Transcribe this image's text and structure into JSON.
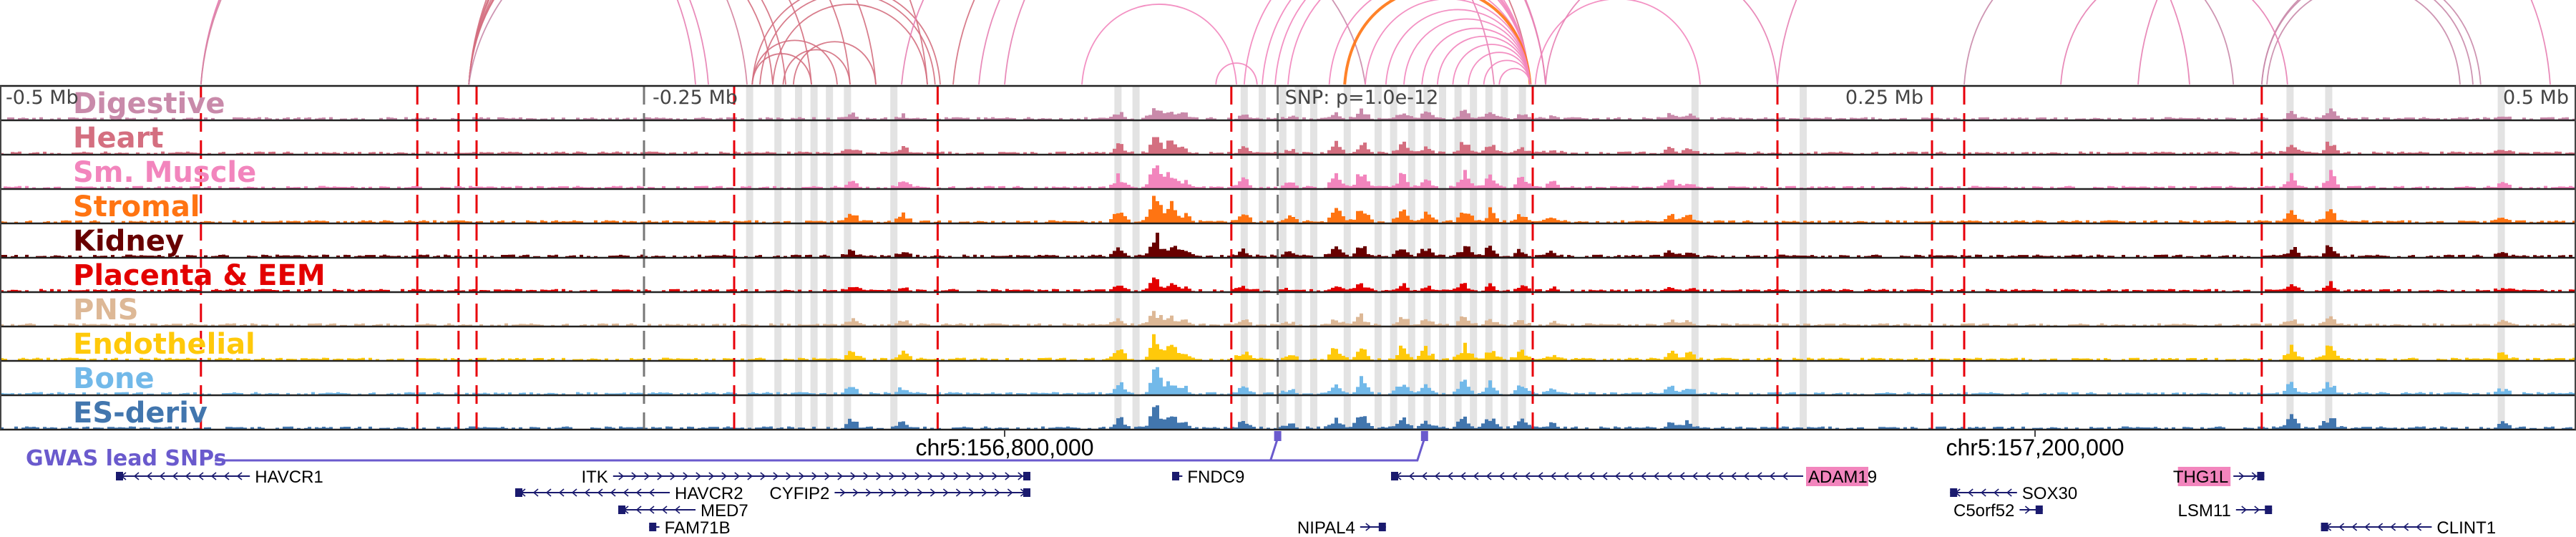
{
  "figure": {
    "axis": {
      "range_mb": [
        -0.5,
        0.5
      ],
      "ticks": [
        {
          "offset_mb": -0.5,
          "label": "-0.5 Mb"
        },
        {
          "offset_mb": -0.25,
          "label": "-0.25 Mb"
        },
        {
          "offset_mb": 0.0,
          "label": "SNP: p=1.0e-12"
        },
        {
          "offset_mb": 0.25,
          "label": "0.25 Mb"
        },
        {
          "offset_mb": 0.5,
          "label": "0.5 Mb"
        }
      ]
    },
    "tracks": [
      {
        "label": "Digestive",
        "color": "#c98aaa"
      },
      {
        "label": "Heart",
        "color": "#d46f80"
      },
      {
        "label": "Sm. Muscle",
        "color": "#f285bd"
      },
      {
        "label": "Stromal",
        "color": "#ff7412"
      },
      {
        "label": "Kidney",
        "color": "#680000"
      },
      {
        "label": "Placenta & EEM",
        "color": "#e30000"
      },
      {
        "label": "PNS",
        "color": "#ddb896"
      },
      {
        "label": "Endothelial",
        "color": "#ffc90a"
      },
      {
        "label": "Bone",
        "color": "#72b9e9"
      },
      {
        "label": "ES-deriv",
        "color": "#4276ae"
      }
    ],
    "red_dashed_offsets_mb": [
      -0.422,
      -0.338,
      -0.322,
      -0.315,
      -0.215,
      -0.136,
      -0.022,
      0.095,
      0.19,
      0.25,
      0.2625,
      0.378
    ],
    "grey_dashed_offsets_mb": [
      -0.25,
      -0.004
    ],
    "highlight_offsets_mb": [
      -0.209,
      -0.198,
      -0.19,
      -0.184,
      -0.178,
      -0.171,
      -0.153,
      -0.066,
      -0.059,
      -0.017,
      -0.01,
      -0.002,
      0.004,
      0.01,
      0.023,
      0.035,
      0.041,
      0.048,
      0.054,
      0.06,
      0.066,
      0.072,
      0.078,
      0.084,
      0.091,
      0.158,
      0.2,
      0.389,
      0.404,
      0.471
    ],
    "peaks": [
      {
        "offset_mb": -0.17,
        "height": 0.35
      },
      {
        "offset_mb": -0.15,
        "height": 0.25
      },
      {
        "offset_mb": -0.066,
        "height": 0.45
      },
      {
        "offset_mb": -0.052,
        "height": 0.95
      },
      {
        "offset_mb": -0.046,
        "height": 0.6
      },
      {
        "offset_mb": -0.041,
        "height": 0.3
      },
      {
        "offset_mb": -0.018,
        "height": 0.3
      },
      {
        "offset_mb": 0.0,
        "height": 0.2
      },
      {
        "offset_mb": 0.018,
        "height": 0.45
      },
      {
        "offset_mb": 0.028,
        "height": 0.6
      },
      {
        "offset_mb": 0.044,
        "height": 0.5
      },
      {
        "offset_mb": 0.053,
        "height": 0.4
      },
      {
        "offset_mb": 0.068,
        "height": 0.55
      },
      {
        "offset_mb": 0.078,
        "height": 0.45
      },
      {
        "offset_mb": 0.09,
        "height": 0.35
      },
      {
        "offset_mb": 0.102,
        "height": 0.2
      },
      {
        "offset_mb": 0.148,
        "height": 0.3
      },
      {
        "offset_mb": 0.155,
        "height": 0.25
      },
      {
        "offset_mb": 0.389,
        "height": 0.45
      },
      {
        "offset_mb": 0.404,
        "height": 0.55
      },
      {
        "offset_mb": 0.471,
        "height": 0.25
      }
    ],
    "gwas": {
      "label": "GWAS lead SNPs",
      "snp_offsets_mb": [
        -0.004,
        0.053
      ]
    },
    "coordinates": [
      {
        "offset_mb": -0.11,
        "label": "chr5:156,800,000"
      },
      {
        "offset_mb": 0.29,
        "label": "chr5:157,200,000"
      }
    ],
    "genes": [
      {
        "name": "HAVCR1",
        "start_mb": -0.455,
        "end_mb": -0.403,
        "strand": "-",
        "row": 0,
        "label_side": "right",
        "highlight": false
      },
      {
        "name": "ITK",
        "start_mb": -0.262,
        "end_mb": -0.1,
        "strand": "+",
        "row": 0,
        "label_side": "left",
        "highlight": false
      },
      {
        "name": "HAVCR2",
        "start_mb": -0.3,
        "end_mb": -0.24,
        "strand": "-",
        "row": 1,
        "label_side": "right",
        "highlight": false
      },
      {
        "name": "MED7",
        "start_mb": -0.26,
        "end_mb": -0.23,
        "strand": "-",
        "row": 2,
        "label_side": "right",
        "highlight": false
      },
      {
        "name": "FAM71B",
        "start_mb": -0.248,
        "end_mb": -0.244,
        "strand": "-",
        "row": 3,
        "label_side": "right",
        "highlight": false
      },
      {
        "name": "CYFIP2",
        "start_mb": -0.176,
        "end_mb": -0.1,
        "strand": "+",
        "row": 1,
        "label_side": "left",
        "highlight": false
      },
      {
        "name": "FNDC9",
        "start_mb": -0.045,
        "end_mb": -0.041,
        "strand": "-",
        "row": 0,
        "label_side": "right",
        "highlight": false
      },
      {
        "name": "NIPAL4",
        "start_mb": 0.028,
        "end_mb": 0.038,
        "strand": "+",
        "row": 3,
        "label_side": "left",
        "highlight": false
      },
      {
        "name": "ADAM19",
        "start_mb": 0.04,
        "end_mb": 0.2,
        "strand": "-",
        "row": 0,
        "label_side": "right",
        "highlight": true
      },
      {
        "name": "SOX30",
        "start_mb": 0.257,
        "end_mb": 0.283,
        "strand": "-",
        "row": 1,
        "label_side": "right",
        "highlight": false
      },
      {
        "name": "C5orf52",
        "start_mb": 0.284,
        "end_mb": 0.293,
        "strand": "+",
        "row": 2,
        "label_side": "left",
        "highlight": false
      },
      {
        "name": "THG1L",
        "start_mb": 0.367,
        "end_mb": 0.379,
        "strand": "+",
        "row": 0,
        "label_side": "left",
        "highlight": true
      },
      {
        "name": "LSM11",
        "start_mb": 0.368,
        "end_mb": 0.382,
        "strand": "+",
        "row": 2,
        "label_side": "left",
        "highlight": false
      },
      {
        "name": "CLINT1",
        "start_mb": 0.401,
        "end_mb": 0.444,
        "strand": "-",
        "row": 3,
        "label_side": "right",
        "highlight": false
      }
    ],
    "loops": [
      {
        "a": -0.422,
        "b": -0.23,
        "color": "#e77fb3"
      },
      {
        "a": -0.422,
        "b": -0.225,
        "color": "#e77fb3"
      },
      {
        "a": -0.422,
        "b": -0.21,
        "color": "#d4839f"
      },
      {
        "a": -0.318,
        "b": -0.14,
        "color": "#d46f80"
      },
      {
        "a": -0.318,
        "b": -0.16,
        "color": "#d46f80"
      },
      {
        "a": -0.318,
        "b": -0.17,
        "color": "#d46f80"
      },
      {
        "a": -0.318,
        "b": -0.185,
        "color": "#d46f80"
      },
      {
        "a": -0.318,
        "b": -0.195,
        "color": "#d46f80"
      },
      {
        "a": -0.318,
        "b": -0.2,
        "color": "#d46f80"
      },
      {
        "a": -0.318,
        "b": 0.03,
        "color": "#c98aaa"
      },
      {
        "a": -0.208,
        "b": -0.185,
        "color": "#d46f80"
      },
      {
        "a": -0.208,
        "b": -0.175,
        "color": "#d46f80"
      },
      {
        "a": -0.208,
        "b": -0.135,
        "color": "#d46f80"
      },
      {
        "a": -0.205,
        "b": -0.137,
        "color": "#d46f80"
      },
      {
        "a": -0.2,
        "b": -0.14,
        "color": "#d46f80"
      },
      {
        "a": -0.196,
        "b": -0.17,
        "color": "#d46f80"
      },
      {
        "a": -0.192,
        "b": -0.16,
        "color": "#d46f80"
      },
      {
        "a": -0.15,
        "b": 0.08,
        "color": "#e77fb3"
      },
      {
        "a": -0.12,
        "b": 0.1,
        "color": "#e77fb3"
      },
      {
        "a": -0.11,
        "b": 0.1,
        "color": "#e77fb3"
      },
      {
        "a": -0.13,
        "b": 0.094,
        "color": "#d46f80"
      },
      {
        "a": -0.08,
        "b": -0.02,
        "color": "#f285bd"
      },
      {
        "a": -0.028,
        "b": -0.012,
        "color": "#f285bd"
      },
      {
        "a": -0.017,
        "b": 0.094,
        "color": "#f285bd"
      },
      {
        "a": -0.01,
        "b": 0.094,
        "color": "#f285bd"
      },
      {
        "a": -0.005,
        "b": 0.094,
        "color": "#f285bd"
      },
      {
        "a": 0.0,
        "b": 0.094,
        "color": "#f285bd"
      },
      {
        "a": 0.016,
        "b": 0.094,
        "color": "#f285bd"
      },
      {
        "a": 0.022,
        "b": 0.094,
        "color": "#ff7412"
      },
      {
        "a": 0.03,
        "b": 0.094,
        "color": "#f285bd"
      },
      {
        "a": 0.038,
        "b": 0.094,
        "color": "#f285bd"
      },
      {
        "a": 0.045,
        "b": 0.094,
        "color": "#f285bd"
      },
      {
        "a": 0.052,
        "b": 0.094,
        "color": "#f285bd"
      },
      {
        "a": 0.058,
        "b": 0.094,
        "color": "#f285bd"
      },
      {
        "a": 0.064,
        "b": 0.094,
        "color": "#f285bd"
      },
      {
        "a": 0.07,
        "b": 0.094,
        "color": "#f285bd"
      },
      {
        "a": 0.076,
        "b": 0.094,
        "color": "#f285bd"
      },
      {
        "a": 0.082,
        "b": 0.094,
        "color": "#f285bd"
      },
      {
        "a": 0.096,
        "b": 0.16,
        "color": "#f285bd"
      },
      {
        "a": 0.19,
        "b": 0.35,
        "color": "#e77fb3"
      },
      {
        "a": 0.1,
        "b": 0.19,
        "color": "#e77fb3"
      },
      {
        "a": 0.2625,
        "b": 0.367,
        "color": "#c98aaa"
      },
      {
        "a": 0.378,
        "b": 0.46,
        "color": "#c98aaa"
      },
      {
        "a": 0.378,
        "b": 0.463,
        "color": "#c98aaa"
      },
      {
        "a": 0.38,
        "b": 0.455,
        "color": "#c98aaa"
      },
      {
        "a": 0.3,
        "b": 0.388,
        "color": "#e77fb3"
      },
      {
        "a": 0.33,
        "b": 0.49,
        "color": "#e77fb3"
      }
    ]
  }
}
